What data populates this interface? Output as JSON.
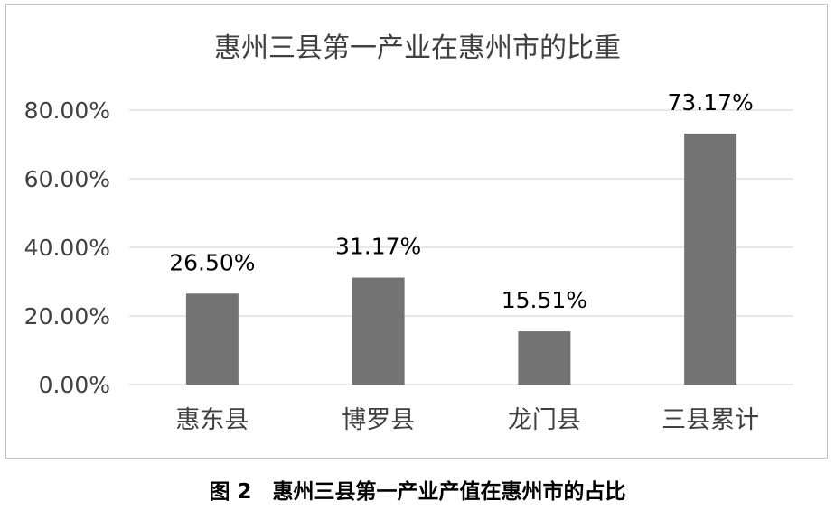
{
  "chart_data": {
    "type": "bar",
    "title": "惠州三县第一产业在惠州市的比重",
    "categories": [
      "惠东县",
      "博罗县",
      "龙门县",
      "三县累计"
    ],
    "values": [
      26.5,
      31.17,
      15.51,
      73.17
    ],
    "data_labels": [
      "26.50%",
      "31.17%",
      "15.51%",
      "73.17%"
    ],
    "y_ticks": [
      0,
      20,
      40,
      60,
      80
    ],
    "y_tick_labels": [
      "0.00%",
      "20.00%",
      "40.00%",
      "60.00%",
      "80.00%"
    ],
    "ylim": [
      0,
      80
    ],
    "grid": true,
    "legend": "none",
    "bar_color": "#737373",
    "grid_color": "#d9d9d9"
  },
  "caption": "图 2　惠州三县第一产业产值在惠州市的占比"
}
